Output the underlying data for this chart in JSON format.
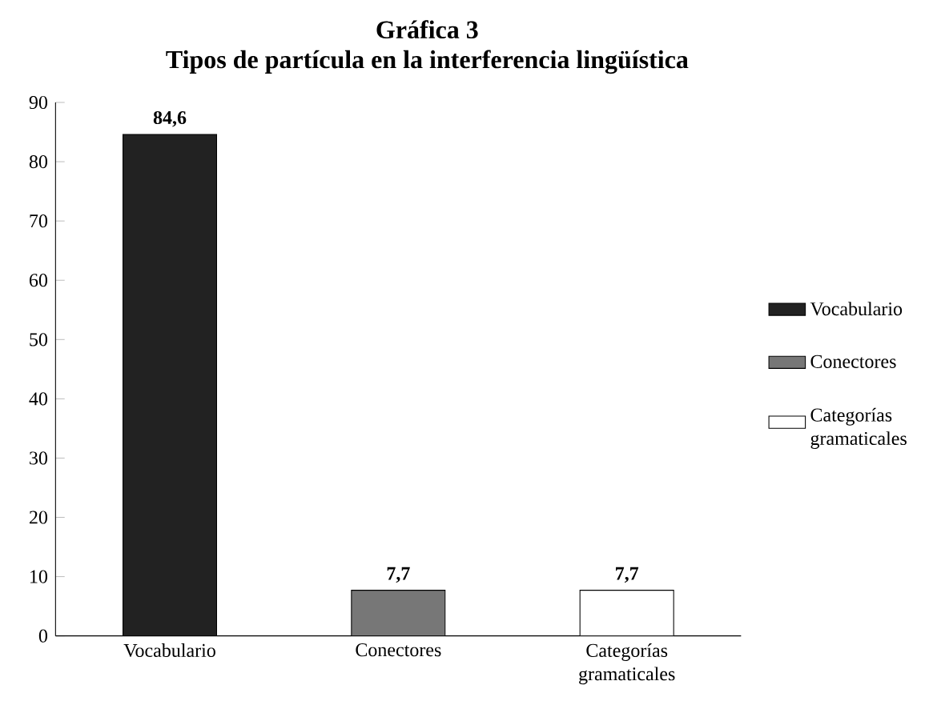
{
  "chart_data": {
    "type": "bar",
    "title": "Gráfica 3",
    "subtitle": "Tipos de partícula en la interferencia lingüística",
    "categories": [
      "Vocabulario",
      "Conectores",
      "Categorías gramaticales"
    ],
    "series": [
      {
        "name": "Vocabulario",
        "color": "#222222",
        "values": [
          84.6,
          null,
          null
        ],
        "value_labels": [
          "84,6",
          null,
          null
        ]
      },
      {
        "name": "Conectores",
        "color": "#777777",
        "values": [
          null,
          7.7,
          null
        ],
        "value_labels": [
          null,
          "7,7",
          null
        ]
      },
      {
        "name": "Categorías gramaticales",
        "color": "#ffffff",
        "values": [
          null,
          null,
          7.7
        ],
        "value_labels": [
          null,
          null,
          "7,7"
        ]
      }
    ],
    "ylim": [
      0,
      90
    ],
    "yticks": [
      0,
      10,
      20,
      30,
      40,
      50,
      60,
      70,
      80,
      90
    ],
    "grid": false,
    "legend": "right"
  }
}
